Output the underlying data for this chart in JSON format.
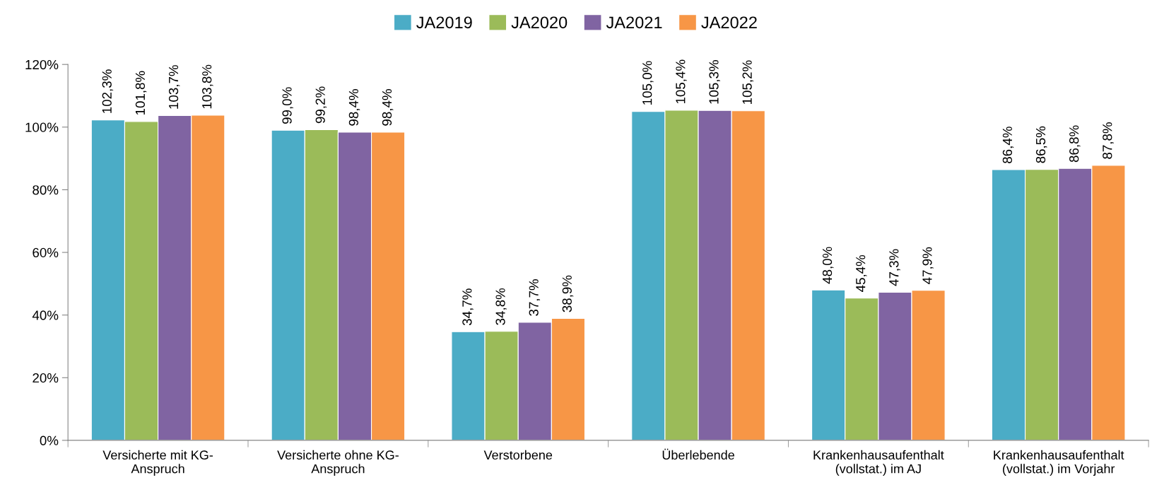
{
  "chart_data": {
    "type": "bar",
    "categories": [
      "Versicherte mit KG-\nAnspruch",
      "Versicherte ohne KG-\nAnspruch",
      "Verstorbene",
      "Überlebende",
      "Krankenhausaufenthalt\n(vollstat.) im AJ",
      "Krankenhausaufenthalt\n(vollstat.) im Vorjahr"
    ],
    "series": [
      {
        "name": "JA2019",
        "color": "#4bacc6",
        "values": [
          102.3,
          99.0,
          34.7,
          105.0,
          48.0,
          86.4
        ],
        "value_labels": [
          "102,3%",
          "99,0%",
          "34,7%",
          "105,0%",
          "48,0%",
          "86,4%"
        ]
      },
      {
        "name": "JA2020",
        "color": "#9bbb59",
        "values": [
          101.8,
          99.2,
          34.8,
          105.4,
          45.4,
          86.5
        ],
        "value_labels": [
          "101,8%",
          "99,2%",
          "34,8%",
          "105,4%",
          "45,4%",
          "86,5%"
        ]
      },
      {
        "name": "JA2021",
        "color": "#8064a2",
        "values": [
          103.7,
          98.4,
          37.7,
          105.3,
          47.3,
          86.8
        ],
        "value_labels": [
          "103,7%",
          "98,4%",
          "37,7%",
          "105,3%",
          "47,3%",
          "86,8%"
        ]
      },
      {
        "name": "JA2022",
        "color": "#f79646",
        "values": [
          103.8,
          98.4,
          38.9,
          105.2,
          47.9,
          87.8
        ],
        "value_labels": [
          "103,8%",
          "98,4%",
          "38,9%",
          "105,2%",
          "47,9%",
          "87,8%"
        ]
      }
    ],
    "ylim": [
      0,
      120
    ],
    "yticks": [
      {
        "value": 0,
        "label": "0%"
      },
      {
        "value": 20,
        "label": "20%"
      },
      {
        "value": 40,
        "label": "40%"
      },
      {
        "value": 60,
        "label": "60%"
      },
      {
        "value": 80,
        "label": "80%"
      },
      {
        "value": 100,
        "label": "100%"
      },
      {
        "value": 120,
        "label": "120%"
      }
    ],
    "legend": "top"
  }
}
